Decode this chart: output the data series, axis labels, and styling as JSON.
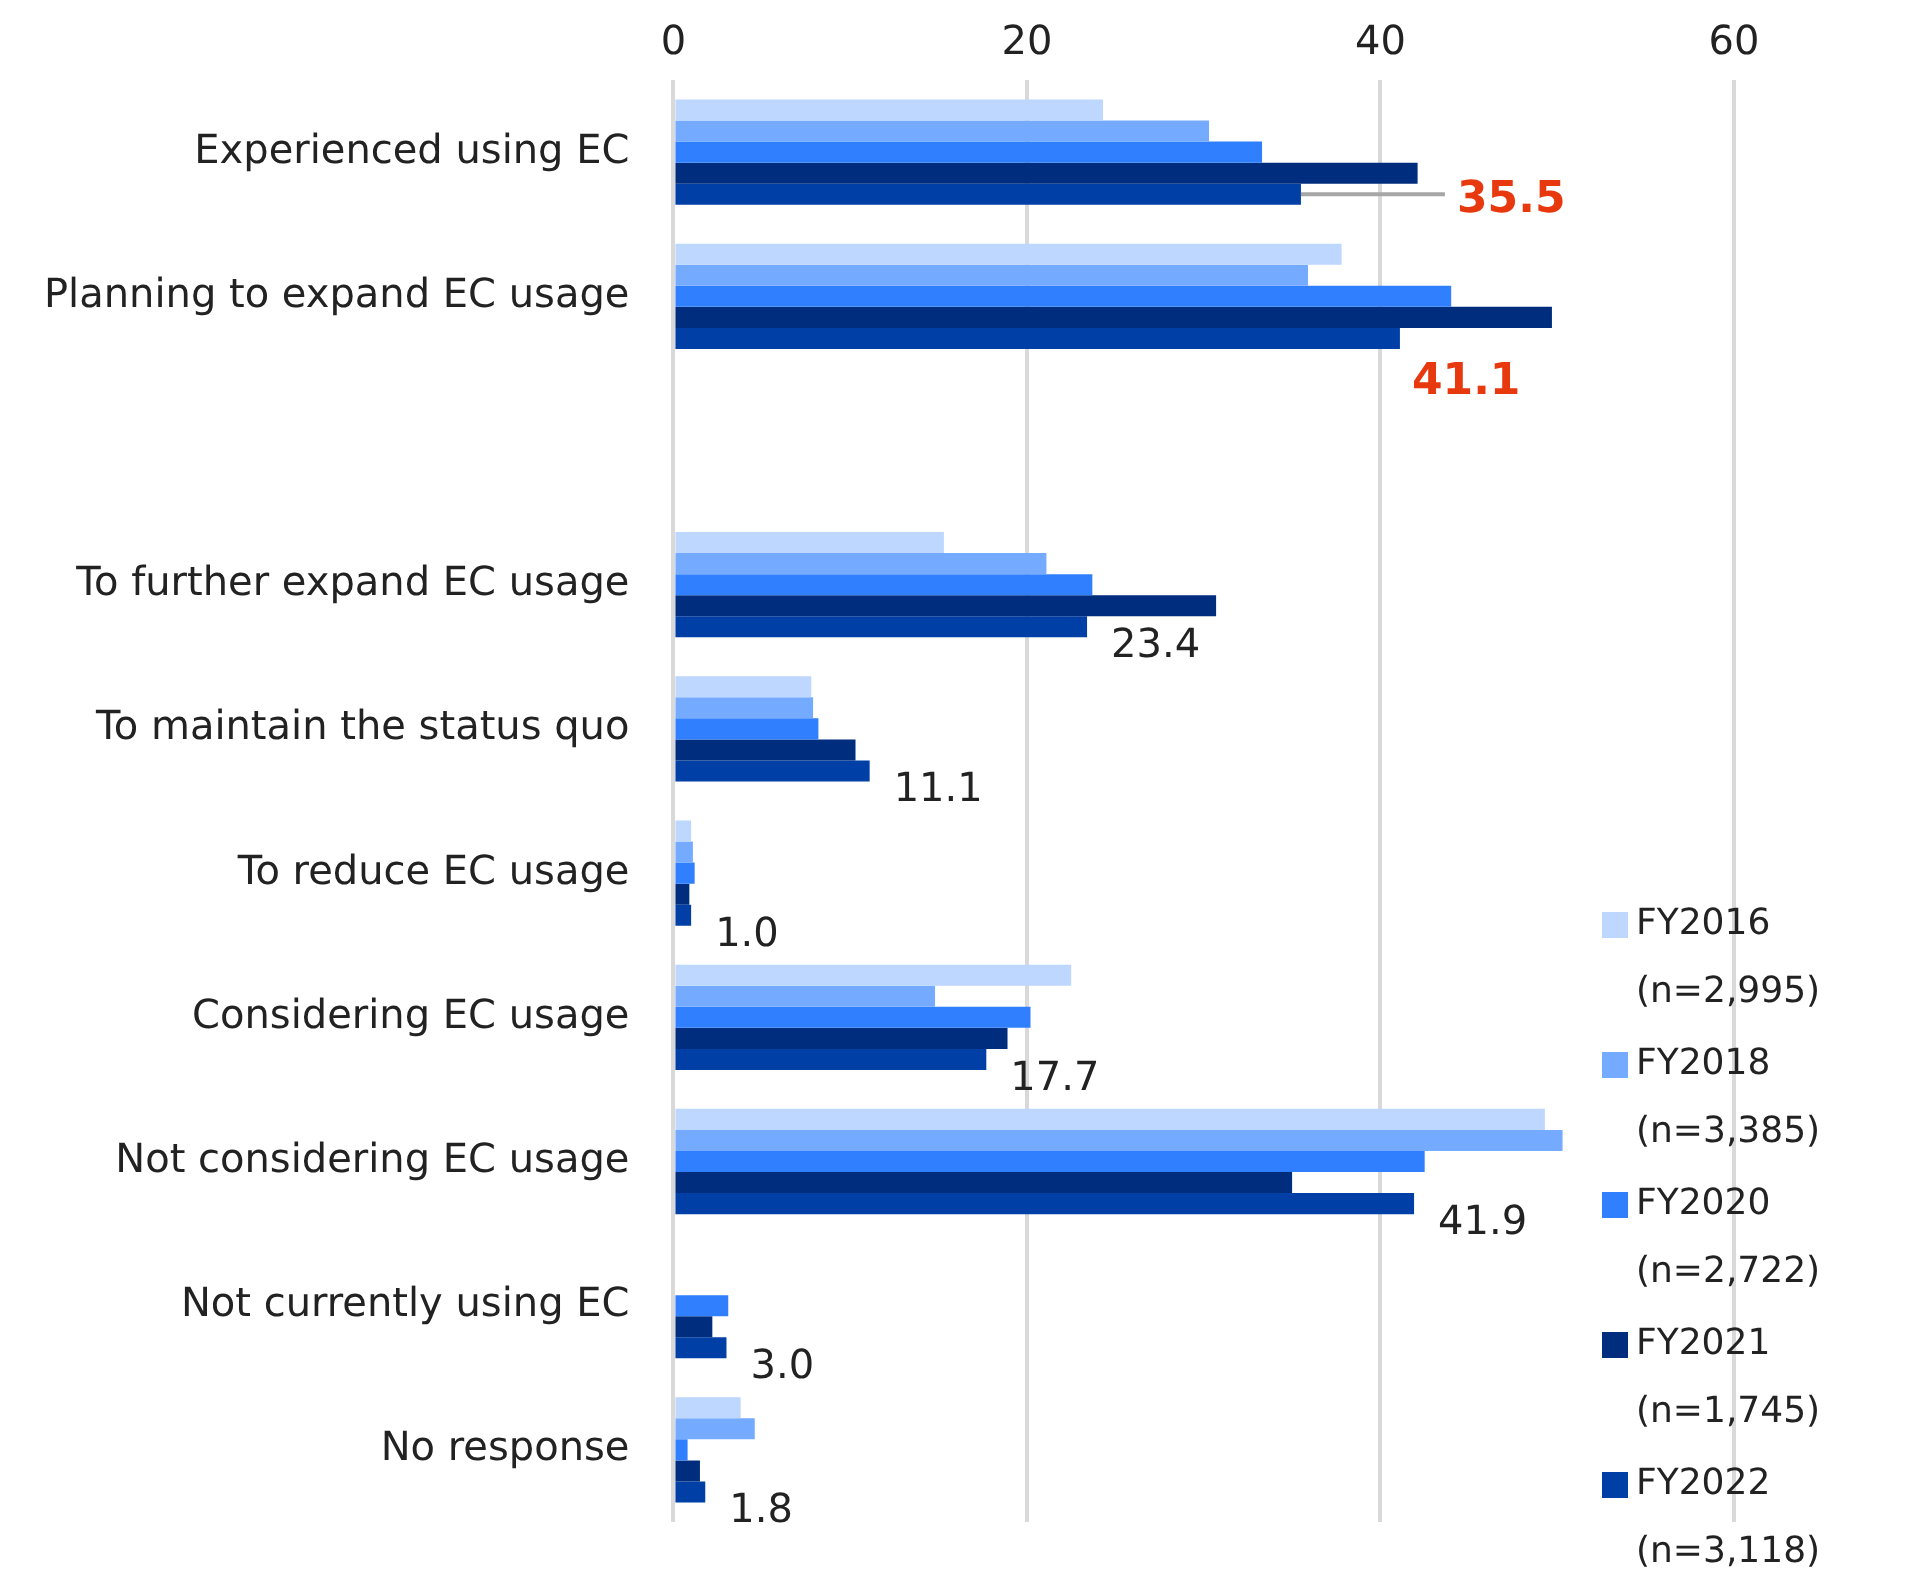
{
  "chart_data": {
    "type": "bar",
    "orientation": "horizontal",
    "categories": [
      "Experienced using EC",
      "Planning to expand EC usage",
      null,
      "To further expand EC usage",
      "To maintain the status quo",
      "To reduce EC usage",
      "Considering EC usage",
      "Not considering EC usage",
      "Not currently using EC",
      "No response"
    ],
    "series": [
      {
        "name": "FY2016 (n=2,995)",
        "color": "#bdd7ff",
        "values": [
          24.3,
          37.8,
          null,
          15.3,
          7.8,
          1.0,
          22.5,
          49.3,
          null,
          3.8
        ]
      },
      {
        "name": "FY2018 (n=3,385)",
        "color": "#74aaff",
        "values": [
          30.3,
          35.9,
          null,
          21.1,
          7.9,
          1.1,
          14.8,
          50.3,
          null,
          4.6
        ]
      },
      {
        "name": "FY2020 (n=2,722)",
        "color": "#2f7fff",
        "values": [
          33.3,
          44.0,
          null,
          23.7,
          8.2,
          1.2,
          20.2,
          42.5,
          3.1,
          0.8
        ]
      },
      {
        "name": "FY2021 (n=1,745)",
        "color": "#002d7d",
        "values": [
          42.1,
          49.7,
          null,
          30.7,
          10.3,
          0.9,
          18.9,
          35.0,
          2.2,
          1.5
        ]
      },
      {
        "name": "FY2022 (n=3,118)",
        "color": "#003fa6",
        "values": [
          35.5,
          41.1,
          null,
          23.4,
          11.1,
          1.0,
          17.7,
          41.9,
          3.0,
          1.8
        ],
        "value_labels": [
          "35.5",
          "41.1",
          null,
          "23.4",
          "11.1",
          "1.0",
          "17.7",
          "41.9",
          "3.0",
          "1.8"
        ]
      }
    ],
    "xlim": [
      0,
      60
    ],
    "xticks": [
      0,
      20,
      40,
      60
    ],
    "grid": "x",
    "legend": "bottom right"
  }
}
